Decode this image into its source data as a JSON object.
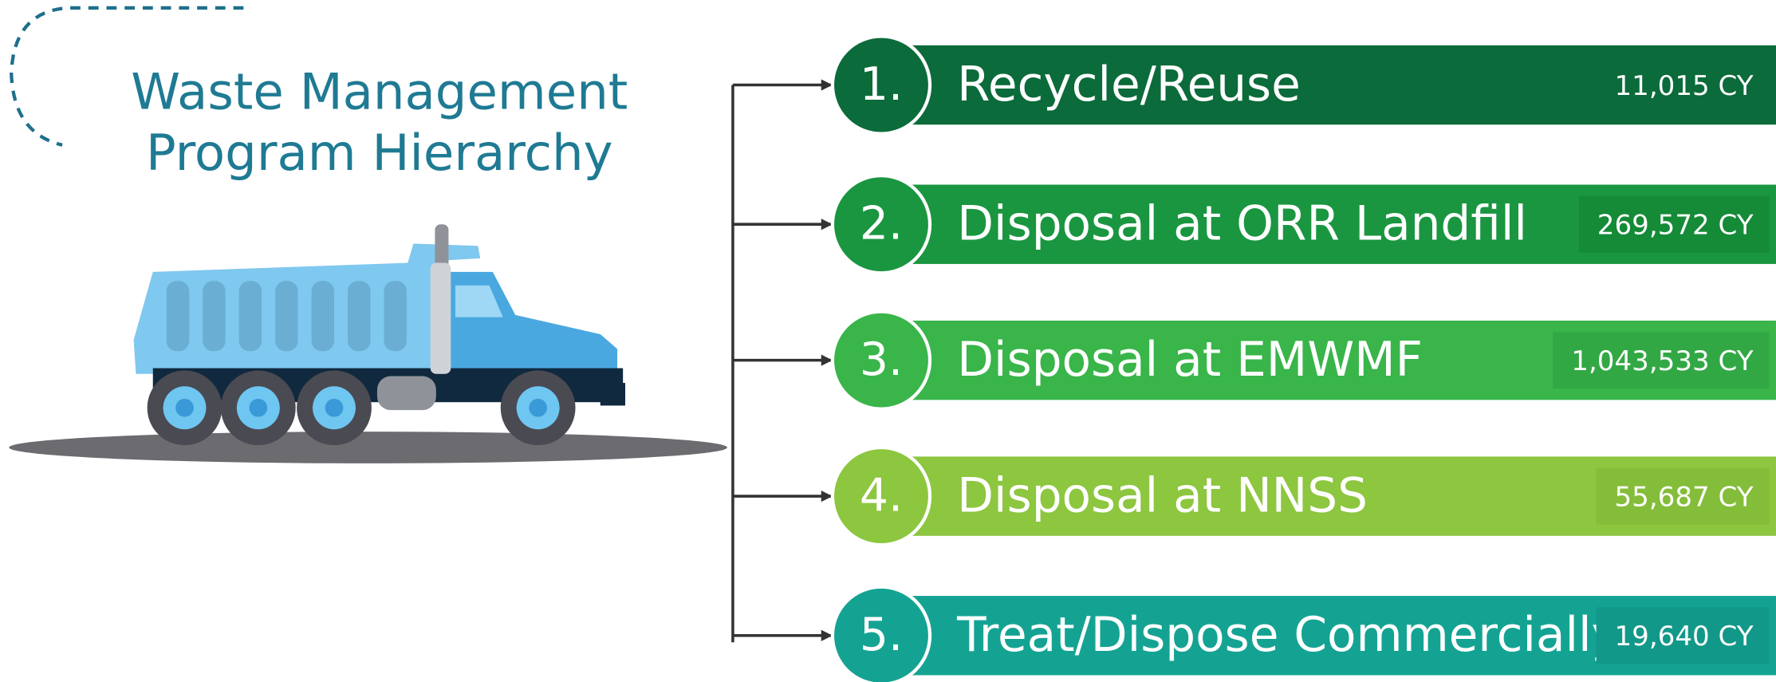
{
  "title": [
    "Waste Management",
    "Program Hierarchy"
  ],
  "items": [
    {
      "number": "1.",
      "label": "Recycle/Reuse",
      "amount": "11,015 CY"
    },
    {
      "number": "2.",
      "label": "Disposal at ORR Landfill",
      "amount": "269,572 CY"
    },
    {
      "number": "3.",
      "label": "Disposal at EMWMF",
      "amount": "1,043,533 CY"
    },
    {
      "number": "4.",
      "label": "Disposal at NNSS",
      "amount": "55,687 CY"
    },
    {
      "number": "5.",
      "label": "Treat/Dispose Commercially",
      "amount": "19,640 CY"
    }
  ]
}
